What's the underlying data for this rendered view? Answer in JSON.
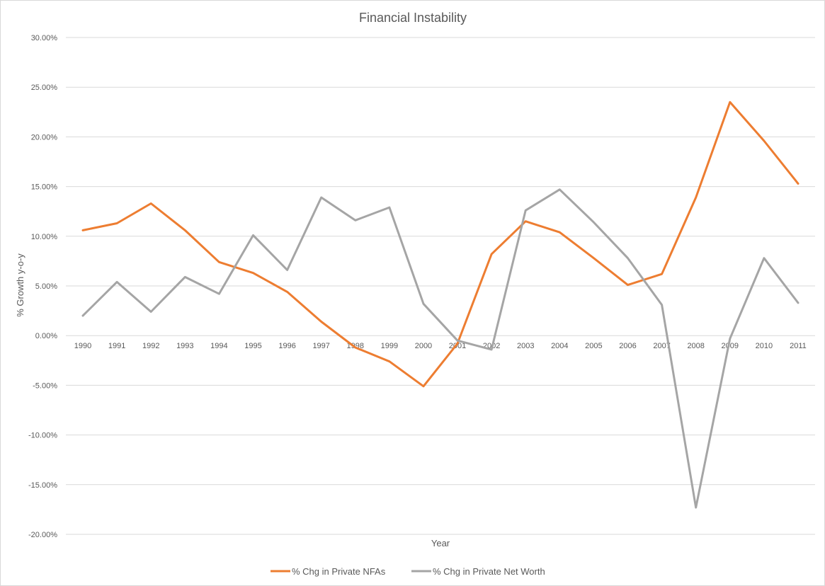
{
  "chart_data": {
    "type": "line",
    "title": "Financial Instability",
    "xlabel": "Year",
    "ylabel": "% Growth y-o-y",
    "categories": [
      "1990",
      "1991",
      "1992",
      "1993",
      "1994",
      "1995",
      "1996",
      "1997",
      "1998",
      "1999",
      "2000",
      "2001",
      "2002",
      "2003",
      "2004",
      "2005",
      "2006",
      "2007",
      "2008",
      "2009",
      "2010",
      "2011"
    ],
    "ylim": [
      -0.2,
      0.3
    ],
    "yticks": [
      0.3,
      0.25,
      0.2,
      0.15,
      0.1,
      0.05,
      0.0,
      -0.05,
      -0.1,
      -0.15,
      -0.2
    ],
    "ytick_labels": [
      "30.00%",
      "25.00%",
      "20.00%",
      "15.00%",
      "10.00%",
      "5.00%",
      "0.00%",
      "-5.00%",
      "-10.00%",
      "-15.00%",
      "-20.00%"
    ],
    "grid": true,
    "legend_position": "bottom",
    "series": [
      {
        "name": "% Chg in Private NFAs",
        "color": "#ED7D31",
        "values": [
          0.106,
          0.113,
          0.133,
          0.106,
          0.074,
          0.063,
          0.044,
          0.014,
          -0.012,
          -0.026,
          -0.051,
          -0.008,
          0.082,
          0.115,
          0.104,
          0.078,
          0.051,
          0.062,
          0.139,
          0.235,
          0.196,
          0.153
        ]
      },
      {
        "name": "% Chg in Private Net Worth",
        "color": "#A5A5A5",
        "values": [
          0.02,
          0.054,
          0.024,
          0.059,
          0.042,
          0.101,
          0.066,
          0.139,
          0.116,
          0.129,
          0.032,
          -0.005,
          -0.014,
          0.126,
          0.147,
          0.114,
          0.078,
          0.031,
          -0.173,
          -0.003,
          0.078,
          0.033
        ]
      }
    ]
  }
}
